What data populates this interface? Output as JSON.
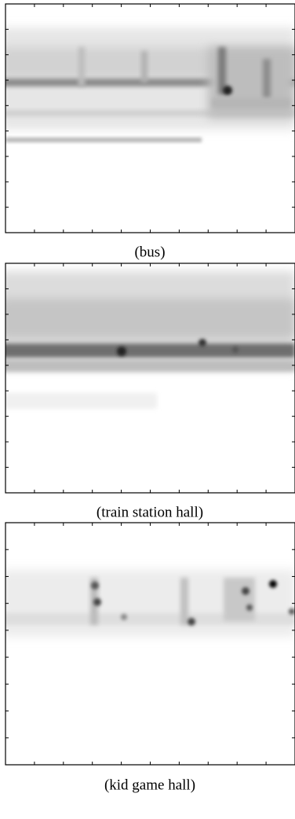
{
  "panels": [
    {
      "caption": "(bus)"
    },
    {
      "caption": "(train station hall)"
    },
    {
      "caption": "(kid game hall)"
    }
  ]
}
